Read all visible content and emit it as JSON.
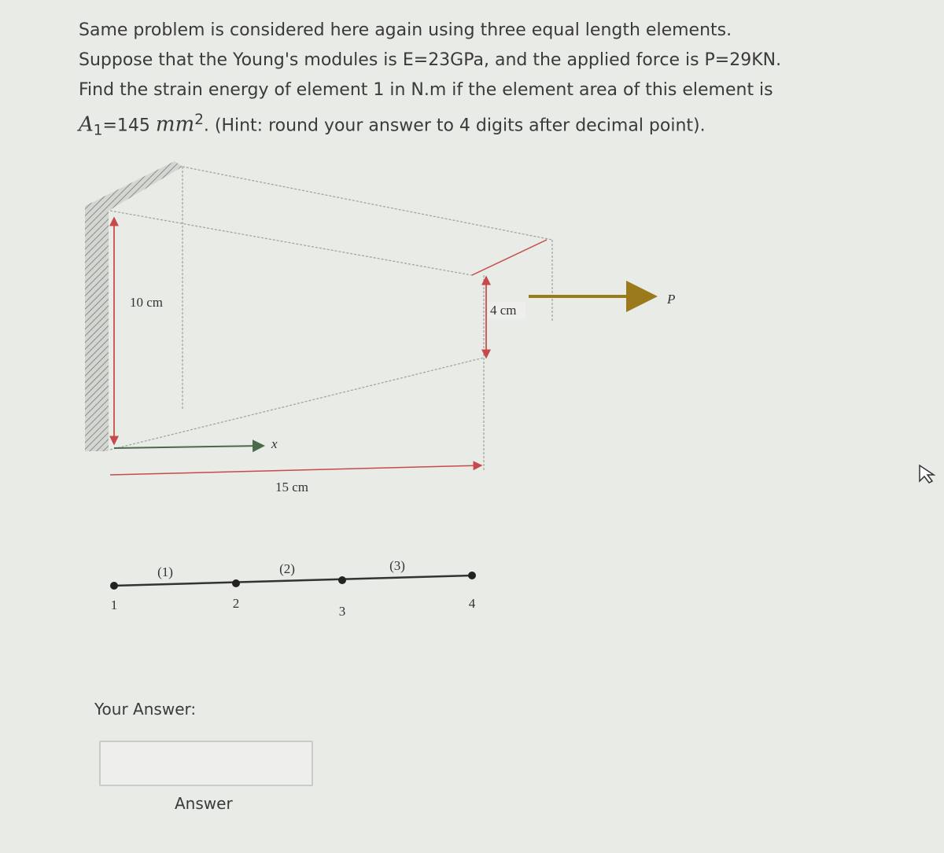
{
  "question": {
    "text_before": "Same problem is considered here again using three equal length elements. Suppose that the Young's modules is E=23GPa, and the applied force is P=29KN. Find the strain energy of element 1 in N.m if the element area of this element is ",
    "area_symbol": "A",
    "area_subscript": "1",
    "area_value": "=145",
    "unit": "mm",
    "unit_power": "2",
    "hint": ". (Hint: round your answer to 4 digits after decimal point)."
  },
  "diagram": {
    "height_left": "10 cm",
    "height_right": "4 cm",
    "length": "15 cm",
    "axis": "x",
    "force": "P",
    "elements": [
      "(1)",
      "(2)",
      "(3)"
    ],
    "nodes": [
      "1",
      "2",
      "3",
      "4"
    ]
  },
  "answer": {
    "prompt": "Your Answer:",
    "button": "Answer"
  }
}
